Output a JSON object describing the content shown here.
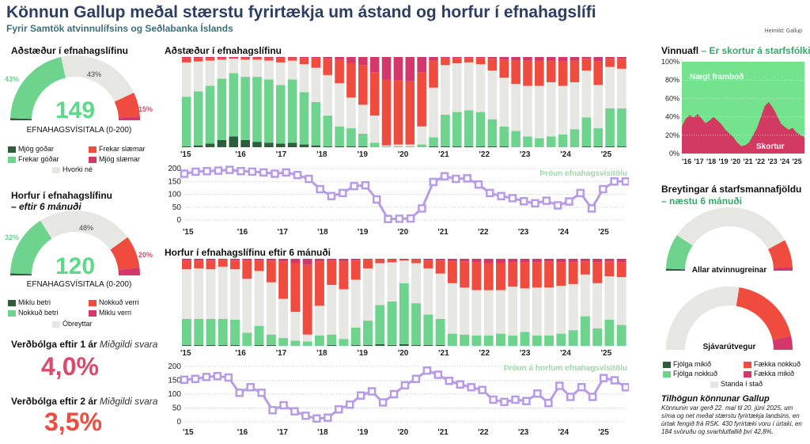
{
  "header": {
    "title": "Könnun Gallup meðal stærstu fyrirtækja  um ástand og horfur í efnahagslífi",
    "subtitle": "Fyrir Samtök atvinnulífsins og Seðlabanka Íslands",
    "source": "Heimild: Gallup"
  },
  "colors": {
    "dark_green": "#2c5e3b",
    "green": "#6ed48d",
    "grey": "#e6e6e2",
    "red": "#ef4c3f",
    "magenta": "#d4386a",
    "purple": "#b79be6",
    "labor_green": "#73e38e",
    "labor_red": "#d23a62"
  },
  "conditions_gauge": {
    "title": "Aðstæður í efnahagslífinu",
    "index_value": "149",
    "index_label": "EFNAHAGSVÍSITALA (0-200)",
    "pct_left": "43%",
    "pct_top": "43%",
    "pct_right": "15%",
    "shares": {
      "very_good": 1,
      "good": 42,
      "neither": 43,
      "bad": 12,
      "very_bad": 2
    },
    "legend": {
      "very_good": "Mjög góðar",
      "good": "Frekar góðar",
      "bad": "Frekar slæmar",
      "very_bad": "Mjög slæmar",
      "neither": "Hvorki né"
    }
  },
  "outlook_gauge": {
    "title": "Horfur í efnahagslífinu",
    "subtitle": "– eftir 6 mánuði",
    "index_value": "120",
    "index_label": "EFNAHAGSVÍSITALA (0-200)",
    "pct_left": "32%",
    "pct_top": "48%",
    "pct_right": "20%",
    "shares": {
      "much_better": 1,
      "better": 31,
      "unchanged": 48,
      "worse": 16,
      "much_worse": 4
    },
    "legend": {
      "much_better": "Miklu betri",
      "better": "Nokkuð betri",
      "worse": "Nokkuð verri",
      "much_worse": "Miklu verri",
      "unchanged": "Óbreyttar"
    }
  },
  "inflation": {
    "one_year_title": "Verðbólga eftir 1 ár",
    "one_year_note": "Miðgildi svara",
    "one_year_value": "4,0%",
    "two_year_title": "Verðbólga eftir 2 ár",
    "two_year_note": "Miðgildi svara",
    "two_year_value": "3,5%"
  },
  "chart_data": [
    {
      "type": "bar",
      "stacked": true,
      "title": "Aðstæður í efnahagslífinu",
      "ylim": [
        0,
        100
      ],
      "x_tick_labels": [
        "'15",
        "'16",
        "'17",
        "'18",
        "'19",
        "'20",
        "'21",
        "'22",
        "'23",
        "'24",
        "'25"
      ],
      "series_order": [
        "Mjög góðar",
        "Frekar góðar",
        "Hvorki né",
        "Frekar slæmar",
        "Mjög slæmar"
      ],
      "stacks": [
        [
          1,
          55,
          38,
          5,
          1
        ],
        [
          2,
          60,
          33,
          4,
          1
        ],
        [
          4,
          64,
          28,
          3,
          1
        ],
        [
          8,
          68,
          21,
          2,
          1
        ],
        [
          12,
          70,
          16,
          1,
          1
        ],
        [
          8,
          70,
          19,
          2,
          1
        ],
        [
          6,
          72,
          19,
          2,
          1
        ],
        [
          5,
          70,
          21,
          3,
          1
        ],
        [
          4,
          65,
          25,
          5,
          1
        ],
        [
          5,
          70,
          21,
          3,
          1
        ],
        [
          3,
          58,
          31,
          7,
          1
        ],
        [
          2,
          48,
          38,
          11,
          1
        ],
        [
          1,
          34,
          45,
          18,
          2
        ],
        [
          1,
          22,
          48,
          26,
          3
        ],
        [
          1,
          20,
          34,
          38,
          7
        ],
        [
          1,
          14,
          32,
          44,
          9
        ],
        [
          0,
          5,
          30,
          48,
          17
        ],
        [
          0,
          1,
          1,
          73,
          25
        ],
        [
          0,
          1,
          2,
          71,
          26
        ],
        [
          0,
          1,
          2,
          70,
          27
        ],
        [
          0,
          3,
          20,
          60,
          17
        ],
        [
          1,
          10,
          55,
          30,
          4
        ],
        [
          1,
          35,
          55,
          8,
          1
        ],
        [
          1,
          38,
          54,
          6,
          1
        ],
        [
          1,
          40,
          53,
          5,
          1
        ],
        [
          1,
          38,
          53,
          7,
          1
        ],
        [
          1,
          30,
          54,
          13,
          2
        ],
        [
          1,
          22,
          54,
          20,
          3
        ],
        [
          0,
          18,
          52,
          26,
          4
        ],
        [
          0,
          12,
          56,
          28,
          4
        ],
        [
          0,
          10,
          58,
          28,
          4
        ],
        [
          0,
          12,
          60,
          24,
          4
        ],
        [
          0,
          14,
          54,
          27,
          5
        ],
        [
          0,
          20,
          52,
          24,
          4
        ],
        [
          1,
          32,
          52,
          13,
          2
        ],
        [
          1,
          20,
          48,
          26,
          5
        ],
        [
          1,
          42,
          46,
          9,
          2
        ],
        [
          1,
          42,
          44,
          11,
          2
        ]
      ]
    },
    {
      "type": "line",
      "title": "Þróun efnahagsvísitölu",
      "ylim": [
        0,
        200
      ],
      "y_ticks": [
        0,
        50,
        100,
        150,
        200
      ],
      "x_tick_labels": [
        "'15",
        "'16",
        "'17",
        "'18",
        "'19",
        "'20",
        "'21",
        "'22",
        "'23",
        "'24",
        "'25"
      ],
      "values": [
        180,
        188,
        190,
        192,
        195,
        190,
        188,
        185,
        180,
        185,
        175,
        160,
        120,
        93,
        105,
        132,
        135,
        80,
        4,
        5,
        6,
        45,
        148,
        170,
        160,
        162,
        138,
        105,
        93,
        85,
        73,
        65,
        75,
        57,
        72,
        105,
        45,
        120,
        150,
        150
      ]
    },
    {
      "type": "bar",
      "stacked": true,
      "title": "Horfur í efnahagslífinu eftir 6 mánuði",
      "ylim": [
        0,
        100
      ],
      "x_tick_labels": [
        "'15",
        "'16",
        "'17",
        "'18",
        "'19",
        "'20",
        "'21",
        "'22",
        "'23",
        "'24",
        "'25"
      ],
      "series_order": [
        "Miklu betri",
        "Nokkuð betri",
        "Óbreyttar",
        "Nokkuð verri",
        "Miklu verri"
      ],
      "stacks": [
        [
          1,
          30,
          57,
          10,
          2
        ],
        [
          1,
          30,
          58,
          9,
          2
        ],
        [
          1,
          30,
          57,
          10,
          2
        ],
        [
          1,
          30,
          60,
          8,
          1
        ],
        [
          1,
          29,
          58,
          10,
          2
        ],
        [
          0,
          15,
          62,
          21,
          2
        ],
        [
          1,
          22,
          63,
          12,
          2
        ],
        [
          1,
          12,
          60,
          25,
          2
        ],
        [
          0,
          9,
          45,
          43,
          3
        ],
        [
          0,
          6,
          33,
          56,
          5
        ],
        [
          0,
          5,
          8,
          80,
          7
        ],
        [
          0,
          12,
          34,
          51,
          3
        ],
        [
          1,
          12,
          57,
          28,
          2
        ],
        [
          0,
          8,
          57,
          32,
          3
        ],
        [
          1,
          20,
          55,
          22,
          2
        ],
        [
          1,
          28,
          60,
          10,
          1
        ],
        [
          2,
          45,
          48,
          4,
          1
        ],
        [
          1,
          50,
          45,
          3,
          1
        ],
        [
          2,
          70,
          26,
          1,
          1
        ],
        [
          1,
          48,
          46,
          4,
          1
        ],
        [
          1,
          35,
          53,
          9,
          2
        ],
        [
          1,
          30,
          52,
          15,
          2
        ],
        [
          0,
          14,
          58,
          25,
          3
        ],
        [
          0,
          13,
          54,
          30,
          3
        ],
        [
          0,
          12,
          52,
          32,
          4
        ],
        [
          0,
          12,
          52,
          31,
          5
        ],
        [
          0,
          14,
          50,
          31,
          5
        ],
        [
          0,
          12,
          56,
          28,
          4
        ],
        [
          0,
          16,
          50,
          30,
          4
        ],
        [
          0,
          12,
          55,
          29,
          4
        ],
        [
          0,
          12,
          55,
          30,
          3
        ],
        [
          0,
          14,
          55,
          27,
          4
        ],
        [
          0,
          18,
          53,
          25,
          4
        ],
        [
          0,
          34,
          48,
          15,
          3
        ],
        [
          0,
          20,
          52,
          24,
          4
        ],
        [
          0,
          30,
          50,
          17,
          3
        ],
        [
          0,
          24,
          55,
          17,
          4
        ]
      ]
    },
    {
      "type": "line",
      "title": "Þróun á horfum efnahagsvísitölu",
      "ylim": [
        0,
        200
      ],
      "y_ticks": [
        0,
        50,
        100,
        150,
        200
      ],
      "x_tick_labels": [
        "'15",
        "'16",
        "'17",
        "'18",
        "'19",
        "'20",
        "'21",
        "'22",
        "'23",
        "'24",
        "'25"
      ],
      "values": [
        152,
        155,
        162,
        165,
        160,
        105,
        125,
        105,
        42,
        60,
        38,
        22,
        12,
        15,
        45,
        62,
        95,
        110,
        70,
        100,
        132,
        155,
        185,
        170,
        148,
        135,
        125,
        115,
        80,
        72,
        80,
        75,
        102,
        68,
        130,
        90,
        125,
        90,
        158,
        150,
        125
      ]
    },
    {
      "type": "area",
      "title": "Vinnuafl",
      "subtitle": "– Er skortur á starfsfólki?",
      "ylim": [
        0,
        100
      ],
      "y_tick_labels": [
        "0%",
        "20%",
        "40%",
        "60%",
        "80%",
        "100%"
      ],
      "x_tick_labels": [
        "'16",
        "'17",
        "'18",
        "'19",
        "'20",
        "'21",
        "'22",
        "'23",
        "'24",
        "'25"
      ],
      "series_names": [
        "Nægt framboð",
        "Skortur"
      ],
      "shortage": [
        30,
        38,
        42,
        39,
        43,
        38,
        33,
        36,
        40,
        36,
        32,
        26,
        22,
        18,
        12,
        8,
        9,
        12,
        20,
        28,
        40,
        52,
        56,
        50,
        42,
        33,
        29,
        26,
        28,
        23,
        20,
        18
      ]
    },
    {
      "type": "pie",
      "title": "Breytingar á starfsmannafjöldu",
      "subtitle": "– næstu 6 mánuði",
      "gauges": [
        {
          "label": "Allar atvinnugreinar",
          "shares": [
            1,
            18,
            65,
            14,
            2
          ]
        },
        {
          "label": "Sjávarútvegur",
          "shares": [
            0,
            0,
            55,
            38,
            7
          ]
        }
      ],
      "legend": [
        "Fjölga mikið",
        "Fjölga nokkuð",
        "Standa í stað",
        "Fækka nokkuð",
        "Fækka mikið"
      ]
    }
  ],
  "survey": {
    "title": "Tilhögun könnunar Gallup",
    "text": "Könnunin var gerð 22. maí til 20. júní 2025, um síma og net meðal stærstu fyrirtækja landsins, en úrtak fengið frá RSK. 430 fyrirtæki voru í úrtaki, en 184 svöruðu og svarhlutfallið því 42,8%."
  }
}
